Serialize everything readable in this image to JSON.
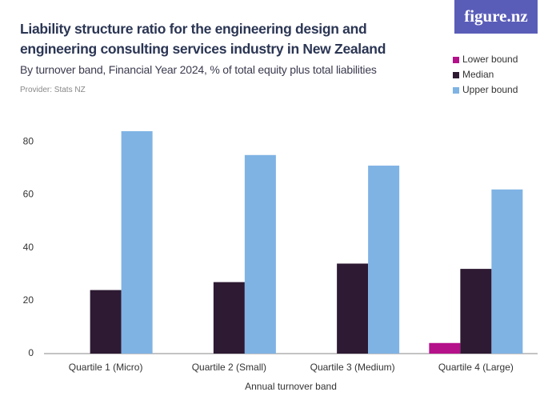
{
  "chart_data": {
    "type": "bar",
    "title": "Liability structure ratio for the engineering design and engineering consulting services industry in New Zealand",
    "subtitle": "By turnover band, Financial Year 2024, % of total equity plus total liabilities",
    "provider": "Provider: Stats NZ",
    "logo": "figure.nz",
    "x_label": "Annual turnover band",
    "categories": [
      "Quartile 1 (Micro)",
      "Quartile 2 (Small)",
      "Quartile 3 (Medium)",
      "Quartile 4 (Large)"
    ],
    "series": [
      {
        "name": "Lower bound",
        "color": "#b5118a",
        "values": [
          null,
          null,
          null,
          4
        ]
      },
      {
        "name": "Median",
        "color": "#2e1a33",
        "values": [
          24,
          27,
          34,
          32
        ]
      },
      {
        "name": "Upper bound",
        "color": "#7fb3e4",
        "values": [
          84,
          75,
          71,
          62
        ]
      }
    ],
    "ylim": [
      0,
      84
    ],
    "yticks": [
      0,
      20,
      40,
      60,
      80
    ],
    "grid": false,
    "legend": "top-right"
  }
}
